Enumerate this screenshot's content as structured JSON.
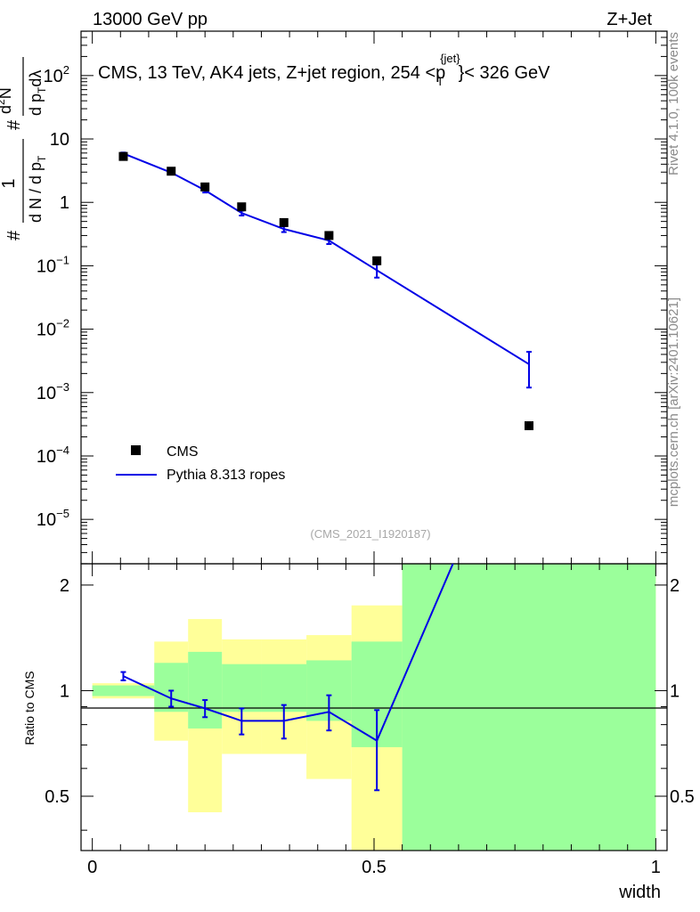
{
  "header": {
    "left": "13000 GeV pp",
    "right": "Z+Jet"
  },
  "plot_title": {
    "main": "CMS, 13 TeV, AK4 jets, Z+jet region, 254 <p",
    "sup": "{jet}",
    "sub": "T",
    "tail": "}< 326 GeV"
  },
  "watermark": "(CMS_2021_I1920187)",
  "side_labels": {
    "rivet": "Rivet 4.1.0,  100k events",
    "mcplots": "mcplots.cern.ch [arXiv:2401.10621]"
  },
  "y_axis_label": {
    "main_num": "1",
    "main_den": "d N / d p",
    "main_den_sub": "T",
    "hash": "#",
    "right_num": "d",
    "right_num_sup": "2",
    "right_num_tail": "N",
    "right_den": "d p",
    "right_den_sub": "T",
    "right_den_tail": "dλ",
    "right_hash": "#"
  },
  "ratio_ylabel": "Ratio to CMS",
  "x_axis_label": "width",
  "x_ticks": [
    "0",
    "0.5",
    "1"
  ],
  "main_y_ticks": [
    {
      "exp": 2,
      "base": "10",
      "sup": "2"
    },
    {
      "exp": 1,
      "base": "10",
      "sup": ""
    },
    {
      "exp": 0,
      "base": "1",
      "sup": ""
    },
    {
      "exp": -1,
      "base": "10",
      "sup": "−1"
    },
    {
      "exp": -2,
      "base": "10",
      "sup": "−2"
    },
    {
      "exp": -3,
      "base": "10",
      "sup": "−3"
    },
    {
      "exp": -4,
      "base": "10",
      "sup": "−4"
    },
    {
      "exp": -5,
      "base": "10",
      "sup": "−5"
    }
  ],
  "ratio_y_ticks": [
    "0.5",
    "1",
    "2"
  ],
  "legend": {
    "cms": "CMS",
    "mc": "Pythia 8.313 ropes"
  },
  "colors": {
    "mc": "#0000e6",
    "band_inner": "#9bff9b",
    "band_outer": "#ffff99",
    "data": "#000000"
  },
  "chart_data": {
    "type": "scatter",
    "xlabel": "width",
    "xlim": [
      -0.02,
      1.02
    ],
    "main_ylim_log10": [
      -5.7,
      2.7
    ],
    "ratio_ylim": [
      0.35,
      2.3
    ],
    "bin_edges": [
      0,
      0.11,
      0.17,
      0.23,
      0.3,
      0.38,
      0.46,
      0.55,
      1.0
    ],
    "data_series": {
      "name": "CMS",
      "x": [
        0.055,
        0.14,
        0.2,
        0.265,
        0.34,
        0.42,
        0.505,
        0.775
      ],
      "y": [
        5.3,
        3.1,
        1.75,
        0.85,
        0.48,
        0.3,
        0.12,
        0.0003
      ]
    },
    "mc_series": {
      "name": "Pythia 8.313 ropes",
      "x": [
        0.055,
        0.14,
        0.2,
        0.265,
        0.34,
        0.42,
        0.505,
        0.775
      ],
      "y": [
        5.9,
        2.95,
        1.55,
        0.68,
        0.38,
        0.25,
        0.085,
        0.0028
      ],
      "err_low": [
        0.2,
        0.15,
        0.12,
        0.06,
        0.04,
        0.03,
        0.02,
        0.0016
      ],
      "err_high": [
        0.2,
        0.15,
        0.12,
        0.06,
        0.04,
        0.03,
        0.02,
        0.0016
      ]
    },
    "ratio": {
      "x": [
        0.055,
        0.14,
        0.2,
        0.265,
        0.34,
        0.42,
        0.505,
        0.64
      ],
      "y": [
        1.1,
        0.95,
        0.89,
        0.82,
        0.82,
        0.87,
        0.72,
        2.3
      ],
      "err_low": [
        0.03,
        0.05,
        0.05,
        0.07,
        0.09,
        0.1,
        0.2,
        0
      ],
      "err_high": [
        0.03,
        0.05,
        0.05,
        0.07,
        0.09,
        0.1,
        0.16,
        0
      ],
      "markers": [
        true,
        true,
        true,
        true,
        true,
        true,
        true,
        false
      ]
    },
    "band_inner": [
      [
        0.965,
        1.035
      ],
      [
        0.87,
        1.2
      ],
      [
        0.78,
        1.29
      ],
      [
        0.87,
        1.19
      ],
      [
        0.87,
        1.19
      ],
      [
        0.82,
        1.22
      ],
      [
        0.69,
        1.38
      ],
      [
        0.35,
        2.3
      ]
    ],
    "band_outer": [
      [
        0.95,
        1.05
      ],
      [
        0.72,
        1.38
      ],
      [
        0.45,
        1.6
      ],
      [
        0.66,
        1.4
      ],
      [
        0.66,
        1.4
      ],
      [
        0.56,
        1.44
      ],
      [
        0.35,
        1.75
      ],
      [
        0.35,
        2.3
      ]
    ]
  }
}
